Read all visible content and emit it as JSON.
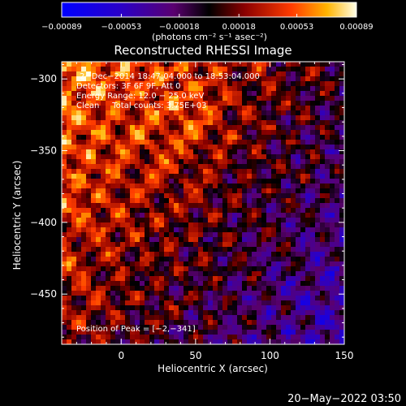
{
  "chart_data": {
    "type": "heatmap",
    "title": "Reconstructed RHESSI Image",
    "xlabel": "Heliocentric X (arcsec)",
    "ylabel": "Heliocentric Y (arcsec)",
    "xlim": [
      -40,
      150
    ],
    "ylim": [
      -485,
      -288
    ],
    "x_ticks": [
      0,
      50,
      100,
      150
    ],
    "x_tick_labels": [
      "0",
      "50",
      "100",
      "150"
    ],
    "y_ticks": [
      -300,
      -350,
      -400,
      -450
    ],
    "y_tick_labels": [
      "−300",
      "−350",
      "−400",
      "−450"
    ],
    "colorbar": {
      "ticks": [
        -0.00089,
        -0.00053,
        -0.00018,
        0.00018,
        0.00053,
        0.00089
      ],
      "tick_labels": [
        "−0.00089",
        "−0.00053",
        "−0.00018",
        "0.00018",
        "0.00053",
        "0.00089"
      ],
      "unit_label": "(photons cm⁻² s⁻¹ asec⁻²)",
      "range": [
        -0.00089,
        0.00089
      ]
    },
    "annotations": [
      "2−Dec−2014 18:47:04.000 to 18:53:04.000",
      "Detectors: 3F 6F 9F, Att 0",
      "Energy Range: 12.0 − 25.0 keV",
      "Clean     Total counts: 3.75E+03"
    ],
    "peak_label": "Position of Peak = [−2,−341]",
    "peak_position": [
      -2,
      -341
    ]
  },
  "footer": {
    "timestamp": "20−May−2022 03:50"
  }
}
